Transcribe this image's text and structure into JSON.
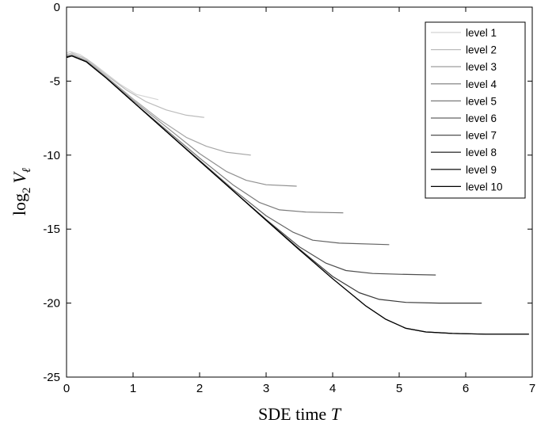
{
  "chart_data": {
    "type": "line",
    "xlabel": "SDE time T",
    "xlabel_parts": {
      "text": "SDE time ",
      "var": "T"
    },
    "ylabel": "log2 Vℓ",
    "ylabel_parts": {
      "func": "log",
      "sub": "2",
      "var": "V",
      "varsub": "ℓ"
    },
    "xlim": [
      0,
      7
    ],
    "ylim": [
      -25,
      0
    ],
    "xticks": [
      0,
      1,
      2,
      3,
      4,
      5,
      6,
      7
    ],
    "yticks": [
      0,
      -5,
      -10,
      -15,
      -20,
      -25
    ],
    "grid": false,
    "legend_position": "top-right",
    "series": [
      {
        "name": "level 1",
        "color": "#d4d4d4",
        "points": [
          [
            0,
            -3.1
          ],
          [
            0.05,
            -3.0
          ],
          [
            0.2,
            -3.2
          ],
          [
            0.4,
            -3.8
          ],
          [
            0.6,
            -4.5
          ],
          [
            0.8,
            -5.2
          ],
          [
            1.05,
            -5.9
          ],
          [
            1.38,
            -6.25
          ]
        ]
      },
      {
        "name": "level 2",
        "color": "#bcbcbc",
        "points": [
          [
            0,
            -3.2
          ],
          [
            0.08,
            -3.1
          ],
          [
            0.3,
            -3.5
          ],
          [
            0.6,
            -4.6
          ],
          [
            0.9,
            -5.6
          ],
          [
            1.2,
            -6.4
          ],
          [
            1.5,
            -6.95
          ],
          [
            1.8,
            -7.3
          ],
          [
            2.07,
            -7.45
          ]
        ]
      },
      {
        "name": "level 3",
        "color": "#a6a6a6",
        "points": [
          [
            0,
            -3.3
          ],
          [
            0.08,
            -3.2
          ],
          [
            0.3,
            -3.6
          ],
          [
            0.6,
            -4.7
          ],
          [
            1.0,
            -6.2
          ],
          [
            1.4,
            -7.6
          ],
          [
            1.8,
            -8.8
          ],
          [
            2.1,
            -9.4
          ],
          [
            2.4,
            -9.8
          ],
          [
            2.77,
            -10.0
          ]
        ]
      },
      {
        "name": "level 4",
        "color": "#909090",
        "points": [
          [
            0,
            -3.3
          ],
          [
            0.08,
            -3.25
          ],
          [
            0.3,
            -3.65
          ],
          [
            0.6,
            -4.75
          ],
          [
            1.0,
            -6.3
          ],
          [
            1.5,
            -8.1
          ],
          [
            2.0,
            -9.9
          ],
          [
            2.4,
            -11.1
          ],
          [
            2.7,
            -11.7
          ],
          [
            3.0,
            -12.0
          ],
          [
            3.46,
            -12.1
          ]
        ]
      },
      {
        "name": "level 5",
        "color": "#7a7a7a",
        "points": [
          [
            0,
            -3.35
          ],
          [
            0.08,
            -3.3
          ],
          [
            0.3,
            -3.7
          ],
          [
            0.6,
            -4.8
          ],
          [
            1.0,
            -6.4
          ],
          [
            1.5,
            -8.3
          ],
          [
            2.0,
            -10.2
          ],
          [
            2.5,
            -12.0
          ],
          [
            2.9,
            -13.2
          ],
          [
            3.2,
            -13.7
          ],
          [
            3.6,
            -13.85
          ],
          [
            4.16,
            -13.9
          ]
        ]
      },
      {
        "name": "level 6",
        "color": "#646464",
        "points": [
          [
            0,
            -3.35
          ],
          [
            0.08,
            -3.3
          ],
          [
            0.3,
            -3.7
          ],
          [
            0.6,
            -4.8
          ],
          [
            1.0,
            -6.4
          ],
          [
            1.5,
            -8.4
          ],
          [
            2.0,
            -10.35
          ],
          [
            2.5,
            -12.3
          ],
          [
            3.0,
            -14.1
          ],
          [
            3.4,
            -15.2
          ],
          [
            3.7,
            -15.75
          ],
          [
            4.1,
            -15.95
          ],
          [
            4.85,
            -16.05
          ]
        ]
      },
      {
        "name": "level 7",
        "color": "#4e4e4e",
        "points": [
          [
            0,
            -3.4
          ],
          [
            0.08,
            -3.3
          ],
          [
            0.3,
            -3.7
          ],
          [
            0.6,
            -4.8
          ],
          [
            1.0,
            -6.4
          ],
          [
            1.5,
            -8.4
          ],
          [
            2.0,
            -10.4
          ],
          [
            2.5,
            -12.4
          ],
          [
            3.0,
            -14.35
          ],
          [
            3.5,
            -16.2
          ],
          [
            3.9,
            -17.3
          ],
          [
            4.2,
            -17.8
          ],
          [
            4.6,
            -18.0
          ],
          [
            5.0,
            -18.05
          ],
          [
            5.55,
            -18.1
          ]
        ]
      },
      {
        "name": "level 8",
        "color": "#383838",
        "points": [
          [
            0,
            -3.4
          ],
          [
            0.08,
            -3.3
          ],
          [
            0.3,
            -3.7
          ],
          [
            0.6,
            -4.8
          ],
          [
            1.0,
            -6.4
          ],
          [
            1.5,
            -8.4
          ],
          [
            2.0,
            -10.4
          ],
          [
            2.5,
            -12.4
          ],
          [
            3.0,
            -14.4
          ],
          [
            3.5,
            -16.35
          ],
          [
            4.0,
            -18.2
          ],
          [
            4.4,
            -19.3
          ],
          [
            4.7,
            -19.75
          ],
          [
            5.1,
            -19.95
          ],
          [
            5.6,
            -20.0
          ],
          [
            6.24,
            -20.0
          ]
        ]
      },
      {
        "name": "level 9",
        "color": "#222222",
        "points": [
          [
            0,
            -3.4
          ],
          [
            0.08,
            -3.3
          ],
          [
            0.3,
            -3.7
          ],
          [
            0.6,
            -4.8
          ],
          [
            1.0,
            -6.4
          ],
          [
            1.5,
            -8.4
          ],
          [
            2.0,
            -10.4
          ],
          [
            2.5,
            -12.4
          ],
          [
            3.0,
            -14.4
          ],
          [
            3.5,
            -16.4
          ],
          [
            4.0,
            -18.35
          ],
          [
            4.5,
            -20.2
          ],
          [
            4.8,
            -21.1
          ],
          [
            5.1,
            -21.7
          ],
          [
            5.4,
            -21.95
          ],
          [
            5.8,
            -22.05
          ],
          [
            6.3,
            -22.1
          ],
          [
            6.95,
            -22.1
          ]
        ]
      },
      {
        "name": "level 10",
        "color": "#000000",
        "points": [
          [
            0,
            -3.4
          ],
          [
            0.08,
            -3.3
          ],
          [
            0.3,
            -3.7
          ],
          [
            0.6,
            -4.8
          ],
          [
            1.0,
            -6.4
          ],
          [
            1.5,
            -8.4
          ],
          [
            2.0,
            -10.4
          ],
          [
            2.5,
            -12.4
          ],
          [
            3.0,
            -14.4
          ],
          [
            3.5,
            -16.4
          ],
          [
            4.0,
            -18.35
          ],
          [
            4.5,
            -20.2
          ],
          [
            4.8,
            -21.1
          ],
          [
            5.1,
            -21.7
          ],
          [
            5.4,
            -21.95
          ],
          [
            5.8,
            -22.05
          ],
          [
            6.3,
            -22.1
          ],
          [
            6.95,
            -22.1
          ]
        ]
      }
    ]
  }
}
